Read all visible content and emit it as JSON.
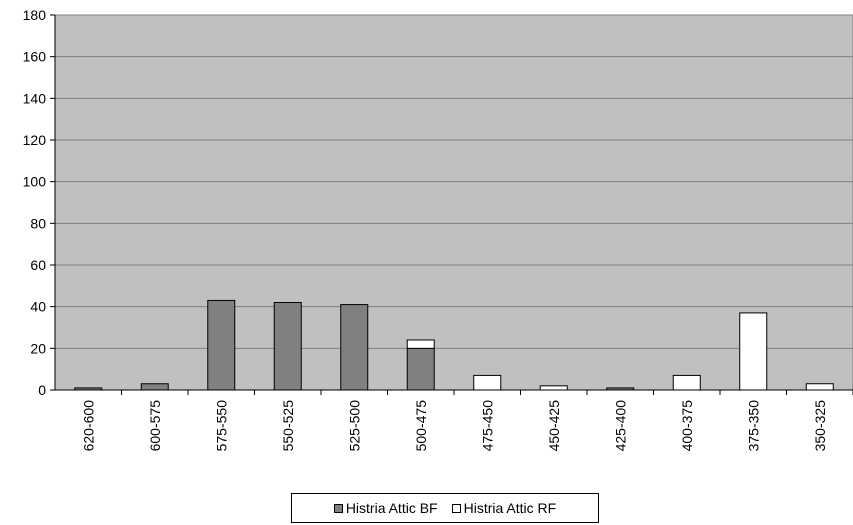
{
  "chart_data": {
    "type": "bar",
    "stacked": true,
    "categories": [
      "620-600",
      "600-575",
      "575-550",
      "550-525",
      "525-500",
      "500-475",
      "475-450",
      "450-425",
      "425-400",
      "400-375",
      "375-350",
      "350-325"
    ],
    "series": [
      {
        "name": "Histria Attic BF",
        "values": [
          1,
          3,
          43,
          42,
          41,
          20,
          0,
          0,
          1,
          0,
          0,
          0
        ],
        "color": "#808080"
      },
      {
        "name": "Histria Attic RF",
        "values": [
          0,
          0,
          0,
          0,
          0,
          4,
          7,
          2,
          0,
          7,
          37,
          3
        ],
        "color": "#ffffff"
      }
    ],
    "ylim": [
      0,
      180
    ],
    "yticks": [
      0,
      20,
      40,
      60,
      80,
      100,
      120,
      140,
      160,
      180
    ],
    "grid": true,
    "plot_background": "#c0c0c0",
    "legend_position": "bottom"
  }
}
